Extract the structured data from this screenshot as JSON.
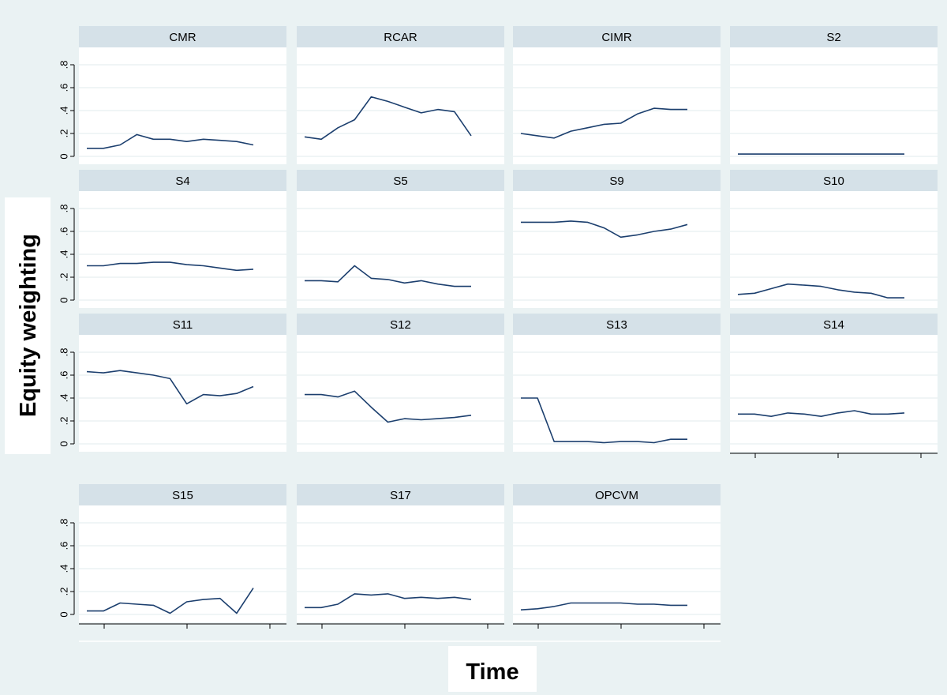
{
  "figure": {
    "ylabel": "Equity weighting",
    "xlabel": "Time"
  },
  "colors": {
    "background": "#eaf2f3",
    "panel": "#ffffff",
    "header": "#d5e1e8",
    "grid": "#e2ebee",
    "line": "#1c3f6e",
    "text": "#000000"
  },
  "chart_data": {
    "type": "line",
    "y_ticks": [
      "0",
      ".2",
      ".4",
      ".6",
      ".8"
    ],
    "ylim": [
      0,
      0.8
    ],
    "grid": "horizontal",
    "panels": [
      {
        "name": "CMR",
        "values": [
          0.07,
          0.07,
          0.1,
          0.19,
          0.15,
          0.15,
          0.13,
          0.15,
          0.14,
          0.13,
          0.1
        ]
      },
      {
        "name": "RCAR",
        "values": [
          0.17,
          0.15,
          0.25,
          0.32,
          0.52,
          0.48,
          0.43,
          0.38,
          0.41,
          0.39,
          0.18
        ]
      },
      {
        "name": "CIMR",
        "values": [
          0.2,
          0.18,
          0.16,
          0.22,
          0.25,
          0.28,
          0.29,
          0.37,
          0.42,
          0.41,
          0.41
        ]
      },
      {
        "name": "S2",
        "values": [
          0.02,
          0.02,
          0.02,
          0.02,
          0.02,
          0.02,
          0.02,
          0.02,
          0.02,
          0.02,
          0.02
        ]
      },
      {
        "name": "S4",
        "values": [
          0.3,
          0.3,
          0.32,
          0.32,
          0.33,
          0.33,
          0.31,
          0.3,
          0.28,
          0.26,
          0.27
        ]
      },
      {
        "name": "S5",
        "values": [
          0.17,
          0.17,
          0.16,
          0.3,
          0.19,
          0.18,
          0.15,
          0.17,
          0.14,
          0.12,
          0.12
        ]
      },
      {
        "name": "S9",
        "values": [
          0.68,
          0.68,
          0.68,
          0.69,
          0.68,
          0.63,
          0.55,
          0.57,
          0.6,
          0.62,
          0.66
        ]
      },
      {
        "name": "S10",
        "values": [
          0.05,
          0.06,
          0.1,
          0.14,
          0.13,
          0.12,
          0.09,
          0.07,
          0.06,
          0.02,
          0.02
        ]
      },
      {
        "name": "S11",
        "values": [
          0.63,
          0.62,
          0.64,
          0.62,
          0.6,
          0.57,
          0.35,
          0.43,
          0.42,
          0.44,
          0.5
        ]
      },
      {
        "name": "S12",
        "values": [
          0.43,
          0.43,
          0.41,
          0.46,
          0.32,
          0.19,
          0.22,
          0.21,
          0.22,
          0.23,
          0.25
        ]
      },
      {
        "name": "S13",
        "values": [
          0.4,
          0.4,
          0.02,
          0.02,
          0.02,
          0.01,
          0.02,
          0.02,
          0.01,
          0.04,
          0.04
        ]
      },
      {
        "name": "S14",
        "values": [
          0.26,
          0.26,
          0.24,
          0.27,
          0.26,
          0.24,
          0.27,
          0.29,
          0.26,
          0.26,
          0.27
        ]
      },
      {
        "name": "S15",
        "values": [
          0.03,
          0.03,
          0.1,
          0.09,
          0.08,
          0.01,
          0.11,
          0.13,
          0.14,
          0.01,
          0.23
        ]
      },
      {
        "name": "S17",
        "values": [
          0.06,
          0.06,
          0.09,
          0.18,
          0.17,
          0.18,
          0.14,
          0.15,
          0.14,
          0.15,
          0.13
        ]
      },
      {
        "name": "OPCVM",
        "values": [
          0.04,
          0.05,
          0.07,
          0.1,
          0.1,
          0.1,
          0.1,
          0.09,
          0.09,
          0.08,
          0.08
        ]
      }
    ]
  }
}
